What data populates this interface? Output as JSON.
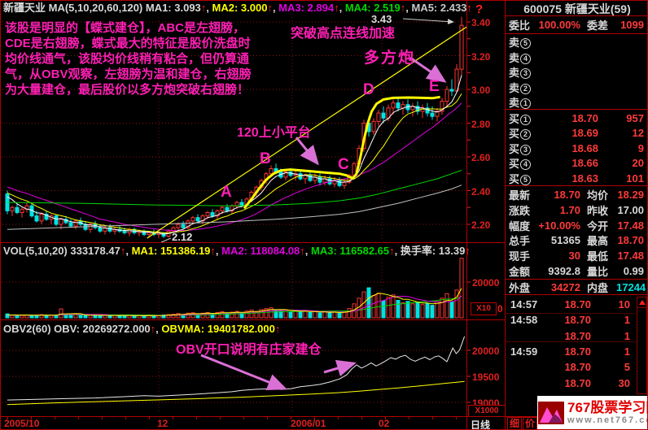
{
  "top_bar": {
    "symbol": "新疆天业",
    "indicator": "MA(5,10,20,60,120)",
    "mas": [
      {
        "label": "MA1:",
        "value": "3.093",
        "color": "w"
      },
      {
        "label": "MA2:",
        "value": "3.000",
        "color": "y"
      },
      {
        "label": "MA3:",
        "value": "2.894",
        "color": "m"
      },
      {
        "label": "MA4:",
        "value": "2.519",
        "color": "g"
      },
      {
        "label": "MA5:",
        "value": "2.433",
        "color": "gy"
      }
    ],
    "help": "?"
  },
  "vol_bar": {
    "title": "VOL(5,10,20)",
    "value": "333178.47",
    "mas": [
      {
        "label": "MA1:",
        "value": "151386.19",
        "color": "y"
      },
      {
        "label": "MA2:",
        "value": "118084.08",
        "color": "m"
      },
      {
        "label": "MA3:",
        "value": "116582.65",
        "color": "g"
      }
    ],
    "turnover_label": "换手率:",
    "turnover_value": "13.39"
  },
  "obv_bar": {
    "title": "OBV2(60)",
    "obv_label": "OBV:",
    "obv_value": "20269272.000",
    "obvma_label": "OBVMA:",
    "obvma_value": "19401782.000"
  },
  "annotations": {
    "paragraph": "该股是明显的【蝶式建仓】，ABC是左翅膀，CDE是右翅膀，蝶式最大的特征是股价洗盘时均价线通气，该股均价线稍有粘合，但仍算通气，从OBV观察，左翅膀为温和建仓，右翅膀为大量建仓，最后股价以多方炮突破右翅膀！",
    "breakout": "突破高点连线加速",
    "duofangpao": "多方炮",
    "platform": "120上小平台",
    "obv_note": "OBV开口说明有庄家建仓",
    "high_label": "3.43",
    "low_label": "2.12",
    "letters": [
      "A",
      "B",
      "C",
      "D",
      "E"
    ]
  },
  "axes": {
    "price_labels": [
      "3.40",
      "3.20",
      "3.00",
      "2.80",
      "2.60",
      "2.40",
      "2.20"
    ],
    "vol_label": "20000",
    "vol_zero": "0",
    "vol_scale": "X10",
    "obv_labels": [
      "20000",
      "19500",
      "19000"
    ],
    "obv_values": [
      20000,
      19500,
      19000
    ],
    "obv_scale": "X1000",
    "dates": [
      {
        "text": "2005/10",
        "x": 4
      },
      {
        "text": "12",
        "x": 192
      },
      {
        "text": "2006/01",
        "x": 356
      },
      {
        "text": "02",
        "x": 464
      }
    ],
    "month_x": [
      194,
      358,
      468
    ],
    "period": "日线"
  },
  "right_panel": {
    "header": "600075 新疆天业(59)",
    "weibi_label": "委比",
    "weibi_value": "100.00%",
    "weicha_label": "委差",
    "weicha_value": "1099",
    "sell_label": "卖",
    "buy_label": "买",
    "sell_rows": [
      {
        "n": "5",
        "price": "",
        "vol": ""
      },
      {
        "n": "4",
        "price": "",
        "vol": ""
      },
      {
        "n": "3",
        "price": "",
        "vol": ""
      },
      {
        "n": "2",
        "price": "",
        "vol": ""
      },
      {
        "n": "1",
        "price": "",
        "vol": ""
      }
    ],
    "buy_rows": [
      {
        "n": "1",
        "price": "18.70",
        "vol": "957"
      },
      {
        "n": "2",
        "price": "18.69",
        "vol": "12"
      },
      {
        "n": "3",
        "price": "18.68",
        "vol": "9"
      },
      {
        "n": "4",
        "price": "18.66",
        "vol": "20"
      },
      {
        "n": "5",
        "price": "18.63",
        "vol": "101"
      }
    ],
    "stats_rows": [
      {
        "l1": "最新",
        "v1": "18.70",
        "c1": "r",
        "l2": "均价",
        "v2": "18.29",
        "c2": "r"
      },
      {
        "l1": "涨跌",
        "v1": "1.70",
        "c1": "r",
        "l2": "昨收",
        "v2": "17.00",
        "c2": "w"
      },
      {
        "l1": "幅度",
        "v1": "+10.00%",
        "c1": "r",
        "l2": "今开",
        "v2": "17.48",
        "c2": "r"
      },
      {
        "l1": "总手",
        "v1": "51365",
        "c1": "w",
        "l2": "最高",
        "v2": "18.70",
        "c2": "r"
      },
      {
        "l1": "现手",
        "v1": "30",
        "c1": "r",
        "l2": "最低",
        "v2": "17.48",
        "c2": "r"
      },
      {
        "l1": "金额",
        "v1": "9392.8",
        "c1": "w",
        "l2": "量比",
        "v2": "0.99",
        "c2": "w"
      }
    ],
    "waipan_label": "外盘",
    "waipan_value": "34272",
    "neipan_label": "内盘",
    "neipan_value": "17244",
    "ticks": [
      {
        "time": "14:57",
        "price": "18.70",
        "vol": "10"
      },
      {
        "time": "14:58",
        "price": "18.70",
        "vol": "1"
      },
      {
        "time": "",
        "price": "18.70",
        "vol": "1"
      },
      {
        "time": "14:59",
        "price": "18.70",
        "vol": "1"
      },
      {
        "time": "",
        "price": "18.70",
        "vol": "5"
      },
      {
        "time": "",
        "price": "18.70",
        "vol": "30"
      }
    ],
    "tabs": [
      "细",
      "价"
    ]
  },
  "watermark": {
    "line1": "767股票学习网",
    "line2": "www.net767.com"
  },
  "chart_data": {
    "type": "candlestick",
    "title": "新疆天业(600075) 日线",
    "x_range": "2005/10 - 2006/02",
    "price_ylim": [
      2.12,
      3.43
    ],
    "price_gridlines": [
      2.2,
      2.4,
      2.6,
      2.8,
      3.0,
      3.2,
      3.4
    ],
    "volume_ylim": [
      0,
      20000
    ],
    "volume_unit": "X10",
    "obv_ylim": [
      19000,
      20300
    ],
    "obv_unit": "X1000",
    "candles": [
      [
        2.38,
        2.4,
        2.26,
        2.28,
        2200
      ],
      [
        2.28,
        2.31,
        2.25,
        2.3,
        1500
      ],
      [
        2.3,
        2.32,
        2.26,
        2.27,
        1400
      ],
      [
        2.27,
        2.3,
        2.24,
        2.29,
        1300
      ],
      [
        2.29,
        2.33,
        2.27,
        2.31,
        1600
      ],
      [
        2.31,
        2.32,
        2.24,
        2.25,
        1400
      ],
      [
        2.25,
        2.28,
        2.21,
        2.22,
        1500
      ],
      [
        2.22,
        2.27,
        2.2,
        2.26,
        1800
      ],
      [
        2.26,
        2.28,
        2.22,
        2.23,
        1400
      ],
      [
        2.23,
        2.26,
        2.2,
        2.25,
        1300
      ],
      [
        2.25,
        2.26,
        2.19,
        2.2,
        1500
      ],
      [
        2.2,
        2.24,
        2.17,
        2.23,
        5000
      ],
      [
        2.23,
        2.25,
        2.2,
        2.21,
        2000
      ],
      [
        2.21,
        2.23,
        2.18,
        2.19,
        1500
      ],
      [
        2.19,
        2.23,
        2.17,
        2.22,
        1800
      ],
      [
        2.22,
        2.24,
        2.19,
        2.2,
        1400
      ],
      [
        2.2,
        2.22,
        2.16,
        2.17,
        1300
      ],
      [
        2.17,
        2.21,
        2.15,
        2.2,
        1600
      ],
      [
        2.2,
        2.22,
        2.17,
        2.18,
        1300
      ],
      [
        2.18,
        2.2,
        2.15,
        2.16,
        1200
      ],
      [
        2.16,
        2.19,
        2.14,
        2.18,
        1500
      ],
      [
        2.18,
        2.2,
        2.15,
        2.16,
        1300
      ],
      [
        2.16,
        2.18,
        2.14,
        2.17,
        1400
      ],
      [
        2.17,
        2.19,
        2.15,
        2.16,
        1200
      ],
      [
        2.16,
        2.18,
        2.14,
        2.15,
        1100
      ],
      [
        2.15,
        2.18,
        2.13,
        2.17,
        1500
      ],
      [
        2.17,
        2.18,
        2.14,
        2.15,
        1200
      ],
      [
        2.15,
        2.17,
        2.13,
        2.16,
        1400
      ],
      [
        2.16,
        2.17,
        2.13,
        2.14,
        1100
      ],
      [
        2.14,
        2.16,
        2.12,
        2.15,
        1300
      ],
      [
        2.15,
        2.17,
        2.13,
        2.14,
        1200
      ],
      [
        2.14,
        2.16,
        2.12,
        2.15,
        1400
      ],
      [
        2.15,
        2.15,
        2.12,
        2.13,
        1600
      ],
      [
        2.13,
        2.17,
        2.12,
        2.16,
        1800
      ],
      [
        2.16,
        2.19,
        2.15,
        2.18,
        2000
      ],
      [
        2.18,
        2.21,
        2.16,
        2.2,
        2400
      ],
      [
        2.2,
        2.22,
        2.17,
        2.18,
        1800
      ],
      [
        2.18,
        2.23,
        2.17,
        2.22,
        2600
      ],
      [
        2.22,
        2.25,
        2.2,
        2.24,
        2800
      ],
      [
        2.24,
        2.26,
        2.21,
        2.22,
        2000
      ],
      [
        2.22,
        2.26,
        2.2,
        2.25,
        2600
      ],
      [
        2.25,
        2.28,
        2.23,
        2.27,
        3000
      ],
      [
        2.27,
        2.29,
        2.24,
        2.25,
        2200
      ],
      [
        2.25,
        2.29,
        2.23,
        2.28,
        3000
      ],
      [
        2.28,
        2.31,
        2.26,
        2.3,
        3400
      ],
      [
        2.3,
        2.32,
        2.27,
        2.28,
        2400
      ],
      [
        2.28,
        2.32,
        2.26,
        2.31,
        3200
      ],
      [
        2.31,
        2.34,
        2.29,
        2.33,
        3600
      ],
      [
        2.33,
        2.35,
        2.3,
        2.31,
        2600
      ],
      [
        2.31,
        2.36,
        2.3,
        2.35,
        3800
      ],
      [
        2.35,
        2.4,
        2.33,
        2.39,
        4400
      ],
      [
        2.39,
        2.43,
        2.36,
        2.42,
        3400
      ],
      [
        2.42,
        2.47,
        2.4,
        2.46,
        4600
      ],
      [
        2.46,
        2.51,
        2.44,
        2.5,
        5200
      ],
      [
        2.5,
        2.55,
        2.48,
        2.53,
        5600
      ],
      [
        2.53,
        2.56,
        2.5,
        2.51,
        4200
      ],
      [
        2.51,
        2.53,
        2.47,
        2.48,
        3600
      ],
      [
        2.48,
        2.52,
        2.46,
        2.51,
        4400
      ],
      [
        2.51,
        2.53,
        2.48,
        2.49,
        3400
      ],
      [
        2.49,
        2.52,
        2.46,
        2.5,
        4000
      ],
      [
        2.5,
        2.52,
        2.46,
        2.47,
        3200
      ],
      [
        2.47,
        2.5,
        2.44,
        2.49,
        3800
      ],
      [
        2.49,
        2.51,
        2.45,
        2.46,
        3000
      ],
      [
        2.46,
        2.5,
        2.44,
        2.48,
        3600
      ],
      [
        2.48,
        2.5,
        2.43,
        2.45,
        2800
      ],
      [
        2.45,
        2.49,
        2.43,
        2.47,
        3400
      ],
      [
        2.47,
        2.49,
        2.43,
        2.44,
        2800
      ],
      [
        2.44,
        2.48,
        2.42,
        2.46,
        3200
      ],
      [
        2.46,
        2.48,
        2.42,
        2.43,
        2600
      ],
      [
        2.43,
        2.47,
        2.41,
        2.45,
        3400
      ],
      [
        2.45,
        2.5,
        2.44,
        2.49,
        5200
      ],
      [
        2.49,
        2.57,
        2.48,
        2.56,
        7800
      ],
      [
        2.56,
        2.67,
        2.54,
        2.65,
        11000
      ],
      [
        2.65,
        2.82,
        2.63,
        2.8,
        14500
      ],
      [
        2.8,
        2.84,
        2.72,
        2.75,
        16800
      ],
      [
        2.75,
        2.83,
        2.73,
        2.81,
        12500
      ],
      [
        2.81,
        2.88,
        2.78,
        2.86,
        13800
      ],
      [
        2.86,
        2.9,
        2.8,
        2.83,
        9500
      ],
      [
        2.83,
        2.91,
        2.81,
        2.89,
        11500
      ],
      [
        2.89,
        2.94,
        2.85,
        2.92,
        12800
      ],
      [
        2.92,
        2.95,
        2.87,
        2.89,
        9800
      ],
      [
        2.89,
        2.93,
        2.85,
        2.91,
        8500
      ],
      [
        2.91,
        2.94,
        2.86,
        2.88,
        9200
      ],
      [
        2.88,
        2.92,
        2.84,
        2.9,
        7800
      ],
      [
        2.9,
        2.93,
        2.85,
        2.87,
        8800
      ],
      [
        2.87,
        2.91,
        2.83,
        2.89,
        7400
      ],
      [
        2.89,
        2.92,
        2.84,
        2.86,
        8200
      ],
      [
        2.86,
        2.9,
        2.82,
        2.84,
        7000
      ],
      [
        2.84,
        2.89,
        2.81,
        2.87,
        9000
      ],
      [
        2.87,
        2.95,
        2.85,
        2.93,
        11000
      ],
      [
        2.93,
        3.02,
        2.9,
        3.0,
        13500
      ],
      [
        3.0,
        3.06,
        2.96,
        2.99,
        9000
      ],
      [
        2.99,
        3.15,
        2.98,
        3.12,
        15500
      ],
      [
        3.12,
        3.43,
        3.08,
        3.38,
        33318
      ]
    ],
    "warmup_closes": [
      2.52,
      2.5,
      2.49,
      2.48,
      2.47,
      2.46,
      2.45,
      2.44,
      2.43,
      2.43,
      2.42,
      2.42,
      2.41,
      2.41,
      2.4,
      2.4,
      2.39,
      2.39,
      2.38,
      2.38
    ],
    "ma60": [
      [
        0,
        2.33
      ],
      [
        15,
        2.325
      ],
      [
        30,
        2.315
      ],
      [
        45,
        2.31
      ],
      [
        55,
        2.315
      ],
      [
        62,
        2.325
      ],
      [
        68,
        2.34
      ],
      [
        72,
        2.355
      ],
      [
        76,
        2.38
      ],
      [
        80,
        2.41
      ],
      [
        84,
        2.44
      ],
      [
        88,
        2.47
      ],
      [
        91,
        2.5
      ],
      [
        93,
        2.52
      ]
    ],
    "ma120": [
      [
        0,
        2.17
      ],
      [
        15,
        2.185
      ],
      [
        30,
        2.2
      ],
      [
        45,
        2.215
      ],
      [
        55,
        2.23
      ],
      [
        62,
        2.245
      ],
      [
        68,
        2.26
      ],
      [
        72,
        2.275
      ],
      [
        76,
        2.3
      ],
      [
        80,
        2.325
      ],
      [
        84,
        2.355
      ],
      [
        88,
        2.385
      ],
      [
        91,
        2.41
      ],
      [
        93,
        2.433
      ]
    ],
    "trendline": {
      "i1": 28.6,
      "p1": 2.118,
      "i2": 94.0,
      "p2": 3.37
    },
    "left_wing": [
      [
        48.5,
        2.295
      ],
      [
        50,
        2.35
      ],
      [
        51.5,
        2.41
      ],
      [
        53,
        2.465
      ],
      [
        54.5,
        2.5
      ],
      [
        56,
        2.52
      ],
      [
        58,
        2.525
      ],
      [
        60,
        2.52
      ],
      [
        62,
        2.515
      ],
      [
        64,
        2.51
      ],
      [
        66,
        2.505
      ],
      [
        68,
        2.5
      ],
      [
        69.5,
        2.49
      ],
      [
        70,
        2.48
      ]
    ],
    "right_wing": [
      [
        70,
        2.48
      ],
      [
        70.8,
        2.475
      ],
      [
        71.5,
        2.5
      ],
      [
        72.3,
        2.6
      ],
      [
        73,
        2.7
      ],
      [
        73.8,
        2.8
      ],
      [
        74.6,
        2.87
      ],
      [
        75.6,
        2.915
      ],
      [
        77,
        2.94
      ],
      [
        79,
        2.95
      ],
      [
        82,
        2.952
      ],
      [
        85,
        2.95
      ],
      [
        87,
        2.948
      ],
      [
        88.6,
        2.955
      ]
    ],
    "obv": [
      [
        0,
        19045
      ],
      [
        6,
        19060
      ],
      [
        12,
        19072
      ],
      [
        18,
        19085
      ],
      [
        24,
        19110
      ],
      [
        28,
        19128
      ],
      [
        31,
        19118
      ],
      [
        34,
        19135
      ],
      [
        38,
        19155
      ],
      [
        42,
        19178
      ],
      [
        46,
        19205
      ],
      [
        48,
        19230
      ],
      [
        51,
        19252
      ],
      [
        54,
        19262
      ],
      [
        56,
        19248
      ],
      [
        58,
        19262
      ],
      [
        60,
        19300
      ],
      [
        62,
        19320
      ],
      [
        64,
        19345
      ],
      [
        66,
        19390
      ],
      [
        68,
        19450
      ],
      [
        69.5,
        19530
      ],
      [
        70.5,
        19640
      ],
      [
        71.5,
        19720
      ],
      [
        72.5,
        19660
      ],
      [
        73.5,
        19705
      ],
      [
        74.5,
        19760
      ],
      [
        75.5,
        19700
      ],
      [
        76.5,
        19745
      ],
      [
        77.5,
        19800
      ],
      [
        78.5,
        19860
      ],
      [
        79.5,
        19830
      ],
      [
        80.5,
        19880
      ],
      [
        81.5,
        19905
      ],
      [
        82.5,
        19830
      ],
      [
        83.5,
        19790
      ],
      [
        84.5,
        19835
      ],
      [
        85.5,
        19870
      ],
      [
        86.5,
        19820
      ],
      [
        87.5,
        19875
      ],
      [
        88.3,
        19893
      ],
      [
        89.2,
        19840
      ],
      [
        90,
        19781
      ],
      [
        91.2,
        20047
      ],
      [
        91.9,
        19938
      ],
      [
        92.6,
        20010
      ],
      [
        93.6,
        20269
      ]
    ],
    "obvma": [
      [
        0,
        18958
      ],
      [
        8,
        18985
      ],
      [
        16,
        19008
      ],
      [
        24,
        19030
      ],
      [
        32,
        19052
      ],
      [
        40,
        19075
      ],
      [
        48,
        19100
      ],
      [
        55,
        19128
      ],
      [
        62,
        19158
      ],
      [
        68,
        19188
      ],
      [
        72,
        19215
      ],
      [
        76,
        19245
      ],
      [
        80,
        19278
      ],
      [
        84,
        19312
      ],
      [
        87,
        19340
      ],
      [
        90,
        19368
      ],
      [
        92,
        19388
      ],
      [
        93.6,
        19402
      ]
    ],
    "highest_label": {
      "i": 93,
      "p": 3.43
    },
    "lowest_label": {
      "i": 32,
      "p": 2.12
    }
  }
}
